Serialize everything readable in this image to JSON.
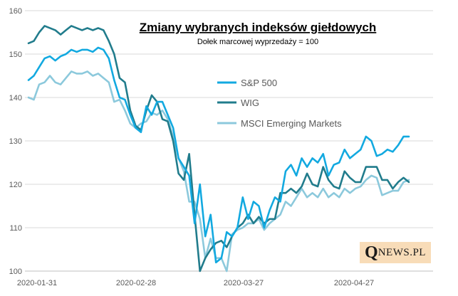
{
  "chart_data": {
    "type": "line",
    "title": "Zmiany wybranych indeksów giełdowych",
    "subtitle": "Dołek marcowej wyprzedaży = 100",
    "xlabel": "",
    "ylabel": "",
    "ylim": [
      100,
      160
    ],
    "yticks": [
      100,
      110,
      120,
      130,
      140,
      150,
      160
    ],
    "xtick_labels": [
      "2020-01-31",
      "2020-02-28",
      "2020-03-27",
      "2020-04-27"
    ],
    "grid": "horizontal",
    "legend_position": "right-center",
    "series": [
      {
        "name": "S&P 500",
        "color": "#12a9e0",
        "values": [
          144,
          145,
          147,
          149,
          149.5,
          148.5,
          149.5,
          150,
          151,
          150.5,
          151,
          151,
          150.5,
          151.5,
          151,
          149,
          144,
          140,
          139.5,
          136,
          133,
          132,
          138,
          136,
          139,
          139,
          136,
          133,
          126,
          124,
          122,
          111,
          120,
          108,
          113,
          102,
          103,
          109,
          108,
          110,
          117,
          112,
          116,
          115,
          110,
          114,
          117,
          116,
          123,
          124.5,
          122,
          126,
          124,
          126,
          125,
          127,
          122,
          124.5,
          125,
          128,
          126,
          127,
          128,
          131,
          130,
          126.5,
          127,
          128,
          127.5,
          129,
          131,
          131
        ]
      },
      {
        "name": "WIG",
        "color": "#217c8c",
        "values": [
          152.5,
          153,
          155,
          156.5,
          156,
          155.5,
          154.5,
          155.5,
          156.5,
          156,
          155.5,
          156,
          155.5,
          156,
          155.5,
          153,
          150,
          144.5,
          143.5,
          137,
          133.5,
          132.5,
          137,
          140.5,
          139,
          135,
          134.5,
          130,
          122.5,
          121,
          127,
          113,
          100,
          103,
          105,
          106.5,
          107,
          105.5,
          108,
          110,
          111,
          113,
          111,
          112.5,
          111,
          112,
          112,
          118,
          118,
          119,
          118,
          119.5,
          122.5,
          120,
          119.5,
          124,
          121,
          119.5,
          119,
          123,
          121.5,
          120.5,
          120.5,
          124,
          124,
          124,
          121,
          121,
          119,
          120.5,
          121.5,
          120.5
        ]
      },
      {
        "name": "MSCI Emerging Markets",
        "color": "#8cc9dc",
        "values": [
          140,
          139.5,
          143,
          143.5,
          145,
          143.5,
          143,
          144.5,
          146,
          145.5,
          145.5,
          146,
          145,
          145.5,
          144.5,
          143.5,
          139,
          139.5,
          137,
          134,
          133,
          134,
          134.5,
          136.5,
          136,
          137,
          135,
          131,
          126,
          123,
          116,
          116,
          112,
          103,
          107.5,
          103,
          103,
          100,
          108.5,
          109.5,
          110,
          111,
          111,
          112,
          109.5,
          111,
          112,
          113,
          116,
          115,
          117,
          119,
          117,
          118,
          117,
          119,
          117,
          118,
          117,
          119,
          118,
          119,
          119.5,
          121,
          122,
          121.5,
          117.5,
          118,
          118.5,
          118.5,
          120.5,
          121
        ]
      }
    ]
  },
  "logo": {
    "q": "Q",
    "rest": "NEWS.PL"
  }
}
